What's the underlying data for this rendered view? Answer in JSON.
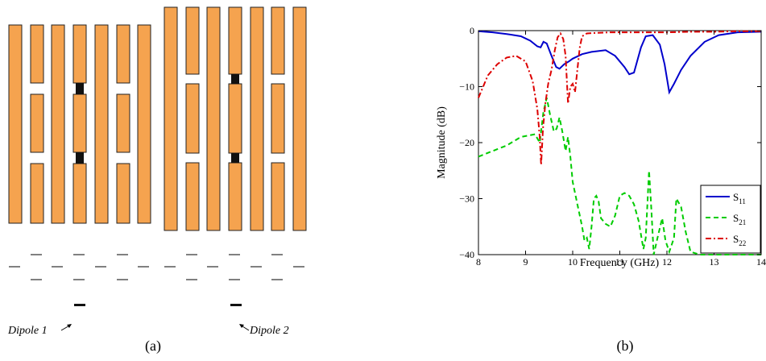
{
  "panel_a": {
    "caption": "(a)",
    "dipole_labels": [
      "Dipole 1",
      "Dipole 2"
    ],
    "colors": {
      "strip": "#f5a34f",
      "stroke": "#222222",
      "dipole": "#111111"
    }
  },
  "panel_b": {
    "caption": "(b)"
  },
  "chart_data": {
    "type": "line",
    "xlabel": "Frequency (GHz)",
    "ylabel": "Magnitude (dB)",
    "xlim": [
      8,
      14
    ],
    "ylim": [
      -40,
      0
    ],
    "xticks": [
      8,
      9,
      10,
      11,
      12,
      13,
      14
    ],
    "yticks": [
      0,
      -10,
      -20,
      -30,
      -40
    ],
    "xtick_labels": [
      "8",
      "9",
      "10",
      "11",
      "12",
      "13",
      "14"
    ],
    "ytick_labels": [
      "0",
      "−10",
      "−20",
      "−30",
      "−40"
    ],
    "grid": false,
    "legend_position": "bottom-right",
    "series": [
      {
        "name": "S11",
        "name_base": "S",
        "name_sub": "11",
        "color": "#0000cc",
        "style": "solid",
        "x": [
          8.0,
          8.3,
          8.6,
          8.9,
          9.1,
          9.25,
          9.32,
          9.38,
          9.45,
          9.55,
          9.65,
          9.72,
          9.82,
          9.92,
          10.0,
          10.2,
          10.4,
          10.7,
          10.9,
          11.1,
          11.2,
          11.3,
          11.45,
          11.55,
          11.7,
          11.85,
          11.95,
          12.05,
          12.15,
          12.3,
          12.5,
          12.8,
          13.1,
          13.5,
          14.0
        ],
        "y": [
          -0.1,
          -0.3,
          -0.6,
          -1.0,
          -1.8,
          -2.8,
          -3.0,
          -2.0,
          -2.3,
          -4.5,
          -6.5,
          -6.8,
          -6.0,
          -5.5,
          -5.0,
          -4.2,
          -3.8,
          -3.5,
          -4.5,
          -6.5,
          -7.8,
          -7.5,
          -3.0,
          -1.0,
          -0.8,
          -2.5,
          -6.0,
          -11.0,
          -9.5,
          -7.0,
          -4.5,
          -2.0,
          -0.8,
          -0.3,
          -0.2
        ]
      },
      {
        "name": "S21",
        "name_base": "S",
        "name_sub": "21",
        "color": "#00cc00",
        "style": "dashed",
        "x": [
          8.0,
          8.3,
          8.6,
          8.9,
          9.2,
          9.3,
          9.38,
          9.45,
          9.52,
          9.6,
          9.66,
          9.72,
          9.78,
          9.85,
          9.9,
          9.95,
          10.0,
          10.05,
          10.1,
          10.15,
          10.2,
          10.25,
          10.3,
          10.35,
          10.4,
          10.45,
          10.5,
          10.55,
          10.6,
          10.7,
          10.8,
          10.9,
          11.0,
          11.1,
          11.2,
          11.3,
          11.4,
          11.5,
          11.55,
          11.62,
          11.67,
          11.72,
          11.8,
          11.9,
          11.97,
          12.05,
          12.15,
          12.2,
          12.3,
          12.4,
          12.5,
          12.7,
          13.0,
          13.5,
          14.0
        ],
        "y": [
          -22.5,
          -21.5,
          -20.5,
          -19.0,
          -18.5,
          -20.0,
          -14.5,
          -12.0,
          -15.0,
          -18.0,
          -17.5,
          -15.5,
          -18.0,
          -21.5,
          -19.0,
          -22.5,
          -27.0,
          -29.0,
          -31.0,
          -33.0,
          -35.0,
          -37.5,
          -37.0,
          -39.0,
          -35.0,
          -30.0,
          -29.5,
          -30.5,
          -33.5,
          -34.5,
          -35.0,
          -33.0,
          -29.5,
          -29.0,
          -29.5,
          -31.0,
          -34.0,
          -39.0,
          -37.0,
          -25.0,
          -32.0,
          -40.0,
          -37.0,
          -33.5,
          -37.5,
          -39.5,
          -37.0,
          -30.0,
          -31.5,
          -36.0,
          -39.5,
          -41.0,
          -40.5,
          -40.5,
          -41.0
        ]
      },
      {
        "name": "S22",
        "name_base": "S",
        "name_sub": "22",
        "color": "#dd0000",
        "style": "dashdot",
        "x": [
          8.0,
          8.2,
          8.4,
          8.6,
          8.8,
          9.0,
          9.15,
          9.25,
          9.3,
          9.33,
          9.37,
          9.42,
          9.48,
          9.55,
          9.62,
          9.68,
          9.74,
          9.8,
          9.85,
          9.9,
          9.95,
          10.0,
          10.05,
          10.1,
          10.15,
          10.2,
          10.3,
          10.5,
          10.8,
          11.2,
          11.6,
          12.0,
          12.5,
          13.0,
          13.5,
          14.0
        ],
        "y": [
          -12.0,
          -8.0,
          -6.0,
          -4.8,
          -4.5,
          -5.5,
          -9.0,
          -14.0,
          -19.0,
          -24.0,
          -17.5,
          -13.0,
          -9.5,
          -7.0,
          -3.5,
          -1.2,
          -0.5,
          -1.5,
          -4.5,
          -13.0,
          -10.0,
          -9.5,
          -11.0,
          -7.0,
          -3.0,
          -1.0,
          -0.5,
          -0.4,
          -0.3,
          -0.3,
          -0.3,
          -0.3,
          -0.2,
          -0.2,
          -0.1,
          -0.1
        ]
      }
    ]
  }
}
